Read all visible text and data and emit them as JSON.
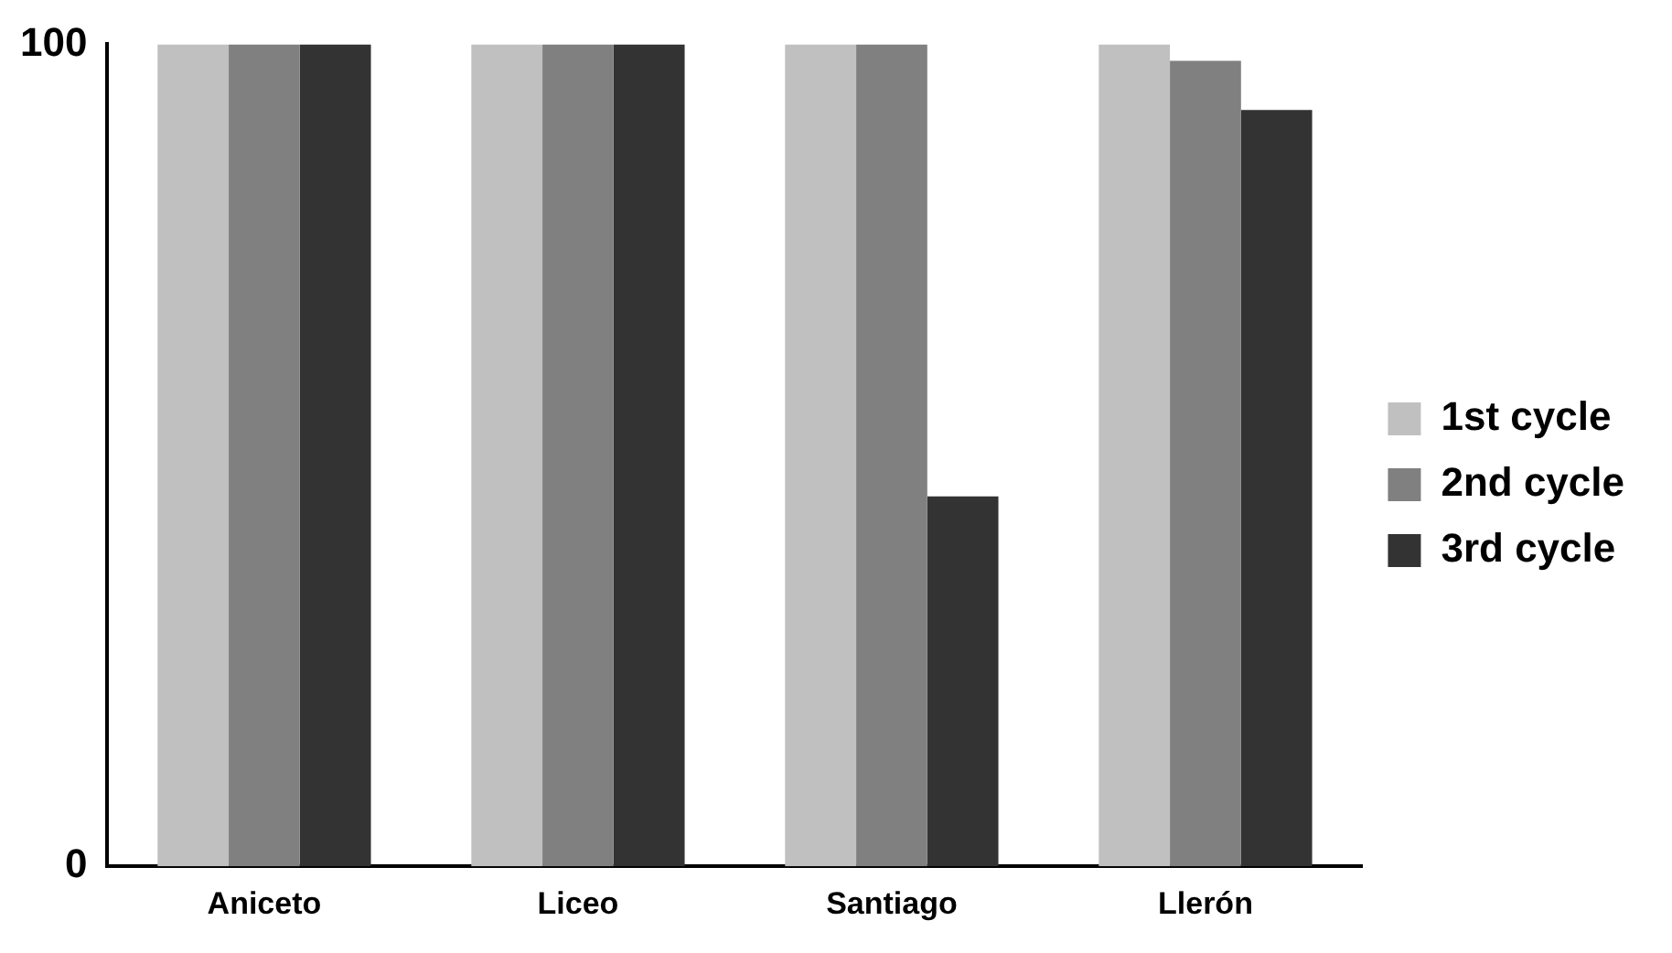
{
  "chart_data": {
    "type": "bar",
    "categories": [
      "Aniceto",
      "Liceo",
      "Santiago",
      "Llerón"
    ],
    "series": [
      {
        "name": "1st cycle",
        "color": "#c0c0c0",
        "values": [
          100,
          100,
          100,
          100
        ]
      },
      {
        "name": "2nd cycle",
        "color": "#808080",
        "values": [
          100,
          100,
          100,
          98
        ]
      },
      {
        "name": "3rd cycle",
        "color": "#333333",
        "values": [
          100,
          100,
          45,
          92
        ]
      }
    ],
    "ylim": [
      0,
      100
    ],
    "yticks": [
      0,
      100
    ],
    "grid": false,
    "legend": "right"
  }
}
